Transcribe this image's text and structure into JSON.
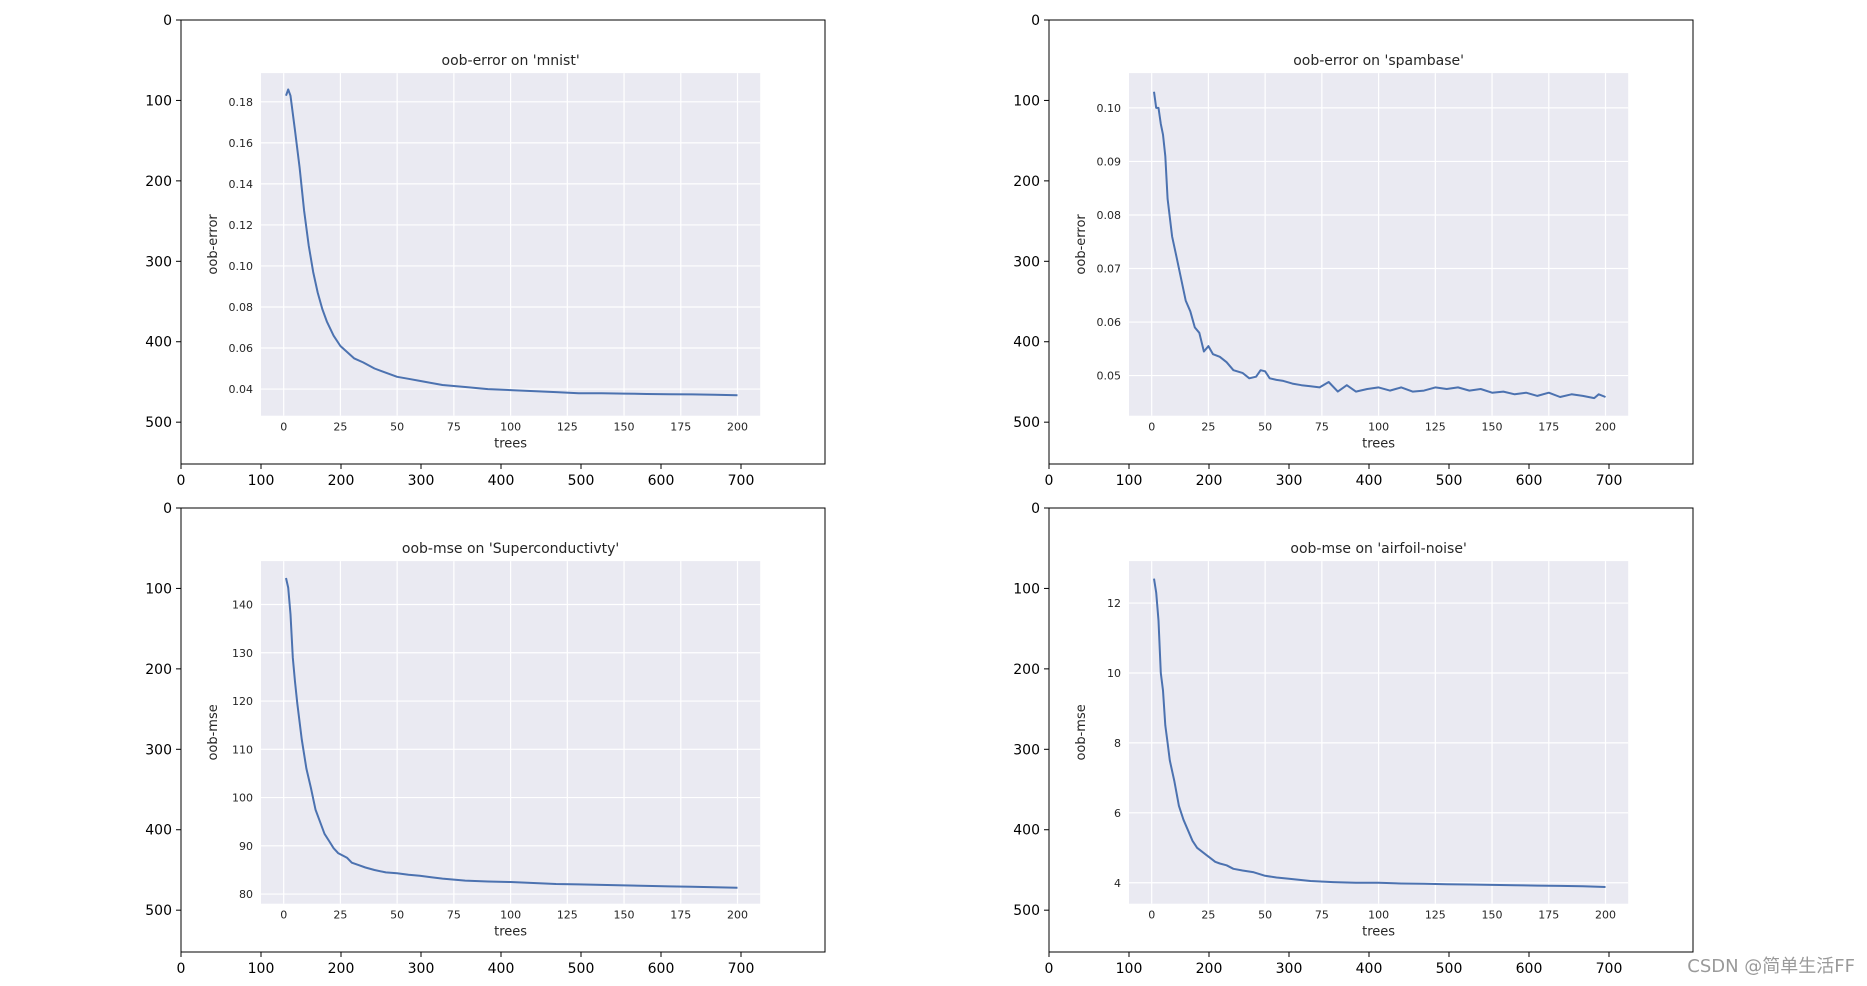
{
  "outer_axes": {
    "x_ticks": [
      0,
      100,
      200,
      300,
      400,
      500,
      600,
      700
    ],
    "y_ticks": [
      0,
      100,
      200,
      300,
      400,
      500
    ]
  },
  "chart_data": [
    {
      "type": "line",
      "title": "oob-error on 'mnist'",
      "xlabel": "trees",
      "ylabel": "oob-error",
      "xticks": [
        0,
        25,
        50,
        75,
        100,
        125,
        150,
        175,
        200
      ],
      "yticks": [
        0.04,
        0.06,
        0.08,
        0.1,
        0.12,
        0.14,
        0.16,
        0.18
      ],
      "ytick_labels": [
        "0.04",
        "0.06",
        "0.08",
        "0.10",
        "0.12",
        "0.14",
        "0.16",
        "0.18"
      ],
      "xlim": [
        -10,
        210
      ],
      "ylim": [
        0.027,
        0.194
      ],
      "grid": true,
      "color": "#4c72b0",
      "background": "#eaeaf2",
      "series": [
        {
          "x": [
            1,
            2,
            3,
            5,
            7,
            9,
            11,
            13,
            15,
            17,
            19,
            22,
            25,
            28,
            31,
            35,
            40,
            45,
            50,
            55,
            60,
            70,
            80,
            90,
            100,
            110,
            120,
            130,
            140,
            150,
            160,
            170,
            180,
            190,
            200
          ],
          "y": [
            0.183,
            0.186,
            0.183,
            0.166,
            0.148,
            0.127,
            0.11,
            0.097,
            0.087,
            0.079,
            0.073,
            0.066,
            0.061,
            0.058,
            0.055,
            0.053,
            0.05,
            0.048,
            0.046,
            0.045,
            0.044,
            0.042,
            0.041,
            0.04,
            0.0395,
            0.039,
            0.0385,
            0.038,
            0.038,
            0.0378,
            0.0376,
            0.0375,
            0.0374,
            0.0372,
            0.037
          ]
        }
      ]
    },
    {
      "type": "line",
      "title": "oob-error on 'spambase'",
      "xlabel": "trees",
      "ylabel": "oob-error",
      "xticks": [
        0,
        25,
        50,
        75,
        100,
        125,
        150,
        175,
        200
      ],
      "yticks": [
        0.05,
        0.06,
        0.07,
        0.08,
        0.09,
        0.1
      ],
      "ytick_labels": [
        "0.05",
        "0.06",
        "0.07",
        "0.08",
        "0.09",
        "0.10"
      ],
      "xlim": [
        -10,
        210
      ],
      "ylim": [
        0.0425,
        0.1065
      ],
      "grid": true,
      "color": "#4c72b0",
      "background": "#eaeaf2",
      "series": [
        {
          "x": [
            1,
            2,
            3,
            4,
            5,
            6,
            7,
            9,
            11,
            13,
            15,
            17,
            19,
            21,
            23,
            25,
            27,
            30,
            33,
            36,
            40,
            43,
            46,
            48,
            50,
            52,
            55,
            58,
            62,
            66,
            70,
            74,
            78,
            82,
            86,
            90,
            95,
            100,
            105,
            110,
            115,
            120,
            125,
            130,
            135,
            140,
            145,
            150,
            155,
            160,
            165,
            170,
            175,
            180,
            185,
            190,
            195,
            197,
            200
          ],
          "y": [
            0.103,
            0.1,
            0.1,
            0.097,
            0.095,
            0.091,
            0.083,
            0.076,
            0.072,
            0.068,
            0.064,
            0.062,
            0.059,
            0.058,
            0.0545,
            0.0555,
            0.054,
            0.0535,
            0.0525,
            0.051,
            0.0505,
            0.0495,
            0.0498,
            0.051,
            0.0508,
            0.0495,
            0.0492,
            0.049,
            0.0485,
            0.0482,
            0.048,
            0.0478,
            0.0488,
            0.047,
            0.0482,
            0.047,
            0.0475,
            0.0478,
            0.0472,
            0.0478,
            0.047,
            0.0472,
            0.0478,
            0.0475,
            0.0478,
            0.0472,
            0.0475,
            0.0468,
            0.047,
            0.0465,
            0.0468,
            0.0462,
            0.0468,
            0.046,
            0.0465,
            0.0462,
            0.0458,
            0.0465,
            0.046
          ]
        }
      ]
    },
    {
      "type": "line",
      "title": "oob-mse on 'Superconductivty'",
      "xlabel": "trees",
      "ylabel": "oob-mse",
      "xticks": [
        0,
        25,
        50,
        75,
        100,
        125,
        150,
        175,
        200
      ],
      "yticks": [
        80,
        90,
        100,
        110,
        120,
        130,
        140
      ],
      "ytick_labels": [
        "80",
        "90",
        "100",
        "110",
        "120",
        "130",
        "140"
      ],
      "xlim": [
        -10,
        210
      ],
      "ylim": [
        78,
        149
      ],
      "grid": true,
      "color": "#4c72b0",
      "background": "#eaeaf2",
      "series": [
        {
          "x": [
            1,
            2,
            3,
            4,
            5,
            6,
            8,
            10,
            12,
            14,
            16,
            18,
            20,
            22,
            24,
            26,
            28,
            30,
            33,
            36,
            40,
            45,
            50,
            55,
            60,
            65,
            70,
            75,
            80,
            90,
            100,
            110,
            120,
            130,
            140,
            150,
            160,
            170,
            180,
            190,
            200
          ],
          "y": [
            145.5,
            143.5,
            138,
            129,
            124,
            119.5,
            112,
            106,
            102,
            97.5,
            95,
            92.5,
            91,
            89.5,
            88.5,
            88,
            87.5,
            86.5,
            86,
            85.5,
            85,
            84.5,
            84.3,
            84,
            83.8,
            83.5,
            83.2,
            83,
            82.8,
            82.6,
            82.5,
            82.3,
            82.1,
            82,
            81.9,
            81.8,
            81.7,
            81.6,
            81.5,
            81.4,
            81.3
          ]
        }
      ]
    },
    {
      "type": "line",
      "title": "oob-mse on 'airfoil-noise'",
      "xlabel": "trees",
      "ylabel": "oob-mse",
      "xticks": [
        0,
        25,
        50,
        75,
        100,
        125,
        150,
        175,
        200
      ],
      "yticks": [
        4,
        6,
        8,
        10,
        12
      ],
      "ytick_labels": [
        "4",
        "6",
        "8",
        "10",
        "12"
      ],
      "xlim": [
        -10,
        210
      ],
      "ylim": [
        3.4,
        13.2
      ],
      "grid": true,
      "color": "#4c72b0",
      "background": "#eaeaf2",
      "series": [
        {
          "x": [
            1,
            2,
            3,
            4,
            5,
            6,
            7,
            8,
            10,
            12,
            14,
            16,
            18,
            20,
            22,
            24,
            26,
            28,
            30,
            33,
            36,
            40,
            45,
            50,
            55,
            60,
            70,
            80,
            90,
            100,
            110,
            120,
            130,
            140,
            150,
            160,
            170,
            180,
            190,
            200
          ],
          "y": [
            12.7,
            12.3,
            11.5,
            10.0,
            9.5,
            8.5,
            8.0,
            7.5,
            6.9,
            6.2,
            5.8,
            5.5,
            5.2,
            5.0,
            4.9,
            4.8,
            4.7,
            4.6,
            4.55,
            4.5,
            4.4,
            4.35,
            4.3,
            4.2,
            4.15,
            4.12,
            4.05,
            4.02,
            4.0,
            4.0,
            3.98,
            3.97,
            3.96,
            3.95,
            3.94,
            3.93,
            3.92,
            3.91,
            3.9,
            3.88
          ]
        }
      ]
    }
  ],
  "watermark": "CSDN @简单生活FF"
}
